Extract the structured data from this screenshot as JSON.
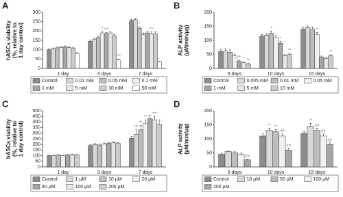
{
  "chart_data": [
    {
      "type": "bar",
      "panel": "A",
      "ylabel": [
        "hASCs viability",
        "(%, relative to",
        "1 day control)"
      ],
      "categories": [
        "1 day",
        "3 days",
        "7 days"
      ],
      "ylim": [
        0,
        300
      ],
      "yticks": [
        0,
        50,
        100,
        150,
        200,
        250,
        300
      ],
      "series": [
        {
          "name": "Control",
          "color": "#8c8c8c",
          "values": [
            100,
            145,
            255
          ],
          "errors": [
            4,
            6,
            6
          ],
          "significance": [
            null,
            null,
            null
          ]
        },
        {
          "name": "0.01 mM",
          "color": "#d9d9d9",
          "values": [
            105,
            155,
            260
          ],
          "errors": [
            4,
            8,
            6
          ],
          "significance": [
            null,
            null,
            null
          ]
        },
        {
          "name": "0.05 mM",
          "color": "#bdbdbd",
          "values": [
            110,
            165,
            215
          ],
          "errors": [
            5,
            8,
            8
          ],
          "significance": [
            null,
            null,
            "*"
          ]
        },
        {
          "name": "0.1 mM",
          "color": "#f0f0f0",
          "values": [
            112,
            190,
            180
          ],
          "errors": [
            5,
            8,
            10
          ],
          "significance": [
            null,
            "*",
            null
          ]
        },
        {
          "name": "1 mM",
          "color": "#a6a6a6",
          "values": [
            115,
            185,
            190
          ],
          "errors": [
            5,
            8,
            10
          ],
          "significance": [
            null,
            "***",
            null
          ]
        },
        {
          "name": "5 mM",
          "color": "#e6e6e6",
          "values": [
            112,
            190,
            185
          ],
          "errors": [
            5,
            8,
            10
          ],
          "significance": [
            null,
            null,
            "***"
          ]
        },
        {
          "name": "10 mM",
          "color": "#cccccc",
          "values": [
            108,
            175,
            185
          ],
          "errors": [
            5,
            8,
            10
          ],
          "significance": [
            null,
            null,
            null
          ]
        },
        {
          "name": "50 mM",
          "color": "#ffffff",
          "values": [
            80,
            45,
            35
          ],
          "errors": [
            4,
            4,
            3
          ],
          "significance": [
            null,
            "***",
            null
          ]
        }
      ]
    },
    {
      "type": "bar",
      "panel": "B",
      "ylabel": [
        "ALP activity",
        "(μM/min/μg)"
      ],
      "categories": [
        "5 days",
        "10 days",
        "15 days"
      ],
      "ylim": [
        0,
        200
      ],
      "yticks": [
        0,
        50,
        100,
        150,
        200
      ],
      "series": [
        {
          "name": "Control",
          "color": "#8c8c8c",
          "values": [
            60,
            115,
            140
          ],
          "errors": [
            8,
            6,
            6
          ],
          "significance": [
            null,
            null,
            null
          ]
        },
        {
          "name": "0.005 mM",
          "color": "#d9d9d9",
          "values": [
            62,
            118,
            145
          ],
          "errors": [
            8,
            6,
            6
          ],
          "significance": [
            null,
            null,
            null
          ]
        },
        {
          "name": "0.01 mM",
          "color": "#bdbdbd",
          "values": [
            58,
            125,
            140
          ],
          "errors": [
            8,
            8,
            8
          ],
          "significance": [
            null,
            "*",
            null
          ]
        },
        {
          "name": "0.05 mM",
          "color": "#f0f0f0",
          "values": [
            45,
            110,
            120
          ],
          "errors": [
            6,
            8,
            8
          ],
          "significance": [
            null,
            null,
            "**"
          ]
        },
        {
          "name": "1 mM",
          "color": "#a6a6a6",
          "values": [
            25,
            90,
            40
          ],
          "errors": [
            4,
            6,
            4
          ],
          "significance": [
            "**",
            "*",
            null
          ]
        },
        {
          "name": "5 mM",
          "color": "#e6e6e6",
          "values": [
            20,
            45,
            35
          ],
          "errors": [
            3,
            4,
            4
          ],
          "significance": [
            "*",
            null,
            null
          ]
        },
        {
          "name": "10 mM",
          "color": "#cccccc",
          "values": [
            15,
            50,
            45
          ],
          "errors": [
            3,
            4,
            4
          ],
          "significance": [
            "**",
            "**",
            "**"
          ]
        }
      ]
    },
    {
      "type": "bar",
      "panel": "C",
      "ylabel": [
        "hASCs viability",
        "(%, relative to",
        "1 day control)"
      ],
      "categories": [
        "1 day",
        "3 days",
        "7 days"
      ],
      "ylim": [
        0,
        500
      ],
      "yticks": [
        0,
        50,
        100,
        150,
        200,
        250,
        300,
        350,
        400,
        450,
        500
      ],
      "series": [
        {
          "name": "Control",
          "color": "#8c8c8c",
          "values": [
            100,
            190,
            255
          ],
          "errors": [
            5,
            8,
            15
          ],
          "significance": [
            null,
            null,
            null
          ]
        },
        {
          "name": "1 μM",
          "color": "#d9d9d9",
          "values": [
            100,
            200,
            290
          ],
          "errors": [
            5,
            8,
            40
          ],
          "significance": [
            null,
            null,
            "***"
          ]
        },
        {
          "name": "10 μM",
          "color": "#bdbdbd",
          "values": [
            105,
            195,
            330
          ],
          "errors": [
            5,
            8,
            40
          ],
          "significance": [
            null,
            null,
            "**"
          ]
        },
        {
          "name": "20 μM",
          "color": "#f0f0f0",
          "values": [
            100,
            205,
            390
          ],
          "errors": [
            5,
            8,
            30
          ],
          "significance": [
            null,
            null,
            "**"
          ]
        },
        {
          "name": "40 μM",
          "color": "#a6a6a6",
          "values": [
            105,
            210,
            430
          ],
          "errors": [
            5,
            8,
            30
          ],
          "significance": [
            null,
            null,
            null
          ]
        },
        {
          "name": "100 μM",
          "color": "#e6e6e6",
          "values": [
            110,
            215,
            420
          ],
          "errors": [
            5,
            8,
            30
          ],
          "significance": [
            null,
            null,
            "***"
          ]
        },
        {
          "name": "200 μM",
          "color": "#cccccc",
          "values": [
            105,
            210,
            380
          ],
          "errors": [
            5,
            8,
            40
          ],
          "significance": [
            null,
            null,
            null
          ]
        }
      ]
    },
    {
      "type": "bar",
      "panel": "D",
      "ylabel": [
        "ALP activity",
        "(μM/min/μg)"
      ],
      "categories": [
        "5 days",
        "10 days",
        "15 days"
      ],
      "ylim": [
        0,
        200
      ],
      "yticks": [
        0,
        50,
        100,
        150,
        200
      ],
      "series": [
        {
          "name": "Control",
          "color": "#8c8c8c",
          "values": [
            45,
            110,
            120
          ],
          "errors": [
            4,
            8,
            6
          ],
          "significance": [
            null,
            null,
            null
          ]
        },
        {
          "name": "10 μM",
          "color": "#d9d9d9",
          "values": [
            55,
            130,
            145
          ],
          "errors": [
            4,
            8,
            10
          ],
          "significance": [
            null,
            "**",
            "**"
          ]
        },
        {
          "name": "50 μM",
          "color": "#bdbdbd",
          "values": [
            50,
            125,
            130
          ],
          "errors": [
            4,
            8,
            8
          ],
          "significance": [
            null,
            "**",
            "##"
          ]
        },
        {
          "name": "100 μM",
          "color": "#f0f0f0",
          "values": [
            45,
            110,
            110
          ],
          "errors": [
            4,
            8,
            8
          ],
          "significance": [
            null,
            "##",
            "##"
          ]
        },
        {
          "name": "200 μM",
          "color": "#a6a6a6",
          "values": [
            25,
            60,
            80
          ],
          "errors": [
            3,
            6,
            6
          ],
          "significance": [
            "##",
            "##",
            "##"
          ]
        }
      ]
    }
  ]
}
